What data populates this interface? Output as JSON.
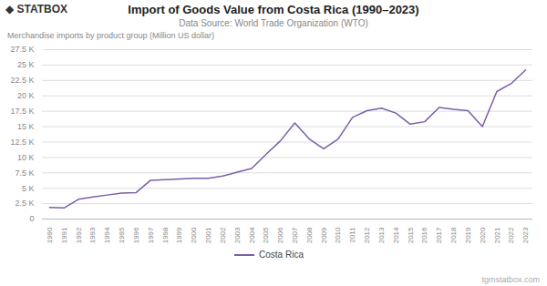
{
  "chart_data": {
    "type": "line",
    "title": "Import of Goods Value from Costa Rica (1990–2023)",
    "subtitle": "Data Source: World Trade Organization (WTO)",
    "ylabel": "Merchandise imports by product group (Million US dollar)",
    "annotations": [
      "◆ STATBOX",
      "tgmstatbox.com"
    ],
    "x": [
      1990,
      1991,
      1992,
      1993,
      1994,
      1995,
      1996,
      1997,
      1998,
      1999,
      2000,
      2001,
      2002,
      2003,
      2004,
      2005,
      2006,
      2007,
      2008,
      2009,
      2010,
      2011,
      2012,
      2013,
      2014,
      2015,
      2016,
      2017,
      2018,
      2019,
      2020,
      2021,
      2022,
      2023
    ],
    "series": [
      {
        "name": "Costa Rica",
        "color": "#7b5ea7",
        "values": [
          1900,
          1800,
          3200,
          3600,
          3900,
          4200,
          4300,
          6300,
          6400,
          6500,
          6600,
          6600,
          7000,
          7600,
          8200,
          10500,
          12700,
          15600,
          13000,
          11400,
          13000,
          16500,
          17600,
          18000,
          17200,
          15400,
          15800,
          18100,
          17800,
          17600,
          15000,
          20700,
          22000,
          24200
        ]
      }
    ],
    "xlim": [
      1989.5,
      2023.5
    ],
    "xticks": [
      1990,
      1991,
      1992,
      1993,
      1994,
      1995,
      1996,
      1997,
      1998,
      1999,
      2000,
      2001,
      2002,
      2003,
      2004,
      2005,
      2006,
      2007,
      2008,
      2009,
      2010,
      2011,
      2012,
      2013,
      2014,
      2015,
      2016,
      2017,
      2018,
      2019,
      2020,
      2021,
      2022,
      2023
    ],
    "ylim": [
      0,
      27500
    ],
    "yticks": [
      0,
      {
        "value": 2500,
        "label": "2.5 K"
      },
      {
        "value": 5000,
        "label": "5 K"
      },
      {
        "value": 7500,
        "label": "7.5 K"
      },
      {
        "value": 10000,
        "label": "10 K"
      },
      {
        "value": 12500,
        "label": "12.5 K"
      },
      {
        "value": 15000,
        "label": "15 K"
      },
      {
        "value": 17500,
        "label": "17.5 K"
      },
      {
        "value": 20000,
        "label": "20 K"
      },
      {
        "value": 22500,
        "label": "22.5 K"
      },
      {
        "value": 25000,
        "label": "25 K"
      },
      {
        "value": 27500,
        "label": "27.5 K"
      }
    ],
    "grid": true,
    "legend": "bottom"
  }
}
